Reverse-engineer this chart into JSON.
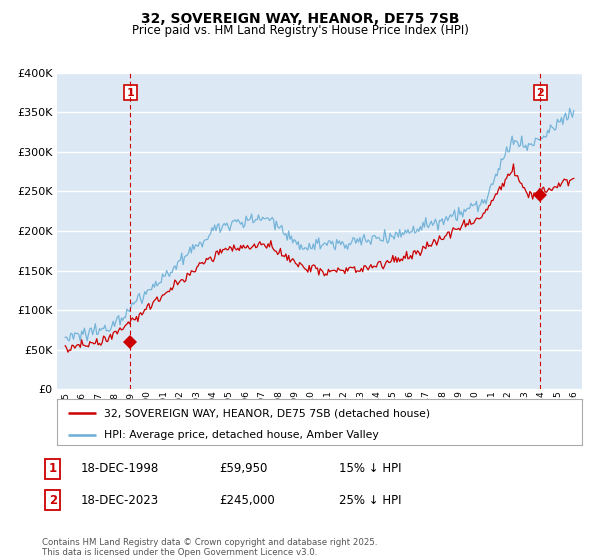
{
  "title": "32, SOVEREIGN WAY, HEANOR, DE75 7SB",
  "subtitle": "Price paid vs. HM Land Registry's House Price Index (HPI)",
  "legend_line1": "32, SOVEREIGN WAY, HEANOR, DE75 7SB (detached house)",
  "legend_line2": "HPI: Average price, detached house, Amber Valley",
  "annotation1_date": "18-DEC-1998",
  "annotation1_price": "£59,950",
  "annotation1_hpi": "15% ↓ HPI",
  "annotation2_date": "18-DEC-2023",
  "annotation2_price": "£245,000",
  "annotation2_hpi": "25% ↓ HPI",
  "footer": "Contains HM Land Registry data © Crown copyright and database right 2025.\nThis data is licensed under the Open Government Licence v3.0.",
  "sale_color": "#cc0000",
  "hpi_color": "#6aaed6",
  "vline_color": "#cc0000",
  "ylim": [
    0,
    400000
  ],
  "yticks": [
    0,
    50000,
    100000,
    150000,
    200000,
    250000,
    300000,
    350000,
    400000
  ],
  "chart_bg": "#dce9f5",
  "fig_bg": "#ffffff",
  "grid_color": "#ffffff",
  "sale1_year": 1998.96,
  "sale2_year": 2023.96,
  "sale1_price": 59950,
  "sale2_price": 245000,
  "xlim_left": 1994.5,
  "xlim_right": 2026.5
}
